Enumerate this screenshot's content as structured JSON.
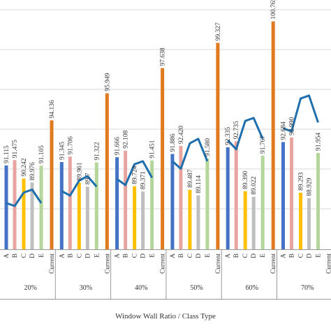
{
  "chart_data": {
    "type": "bar",
    "xlabel": "Window Wall Ratio / Class Type",
    "groups": [
      {
        "label": "20%",
        "categories": [
          "A",
          "B",
          "C",
          "D",
          "E",
          "Current"
        ],
        "values": [
          91.115,
          91.475,
          90.242,
          89.976,
          91.105,
          94.136
        ]
      },
      {
        "label": "30%",
        "categories": [
          "A",
          "B",
          "C",
          "D",
          "E",
          "Current"
        ],
        "values": [
          91.345,
          91.706,
          89.961,
          89.7,
          91.322,
          95.949
        ]
      },
      {
        "label": "40%",
        "categories": [
          "A",
          "B",
          "C",
          "D",
          "E",
          "Current"
        ],
        "values": [
          91.666,
          92.108,
          89.724,
          89.371,
          91.451,
          97.638
        ]
      },
      {
        "label": "50%",
        "categories": [
          "A",
          "B",
          "C",
          "D",
          "E",
          "Current"
        ],
        "values": [
          91.886,
          92.42,
          89.487,
          89.114,
          91.58,
          99.327
        ]
      },
      {
        "label": "60%",
        "categories": [
          "A",
          "B",
          "C",
          "D",
          "E",
          "Current"
        ],
        "values": [
          92.335,
          92.735,
          89.39,
          89.022,
          91.767,
          100.765
        ]
      },
      {
        "label": "70%",
        "categories": [
          "A",
          "B",
          "C",
          "D",
          "E",
          "Current"
        ],
        "values": [
          92.684,
          92.99,
          89.293,
          88.929,
          91.954,
          null
        ]
      }
    ],
    "value_labels": [
      [
        "91.115",
        "91.475",
        "90.242",
        "89.976",
        "91.105",
        "94.136"
      ],
      [
        "91.345",
        "91.706",
        "89.961",
        "89.7",
        "91.322",
        "95.949"
      ],
      [
        "91.666",
        "92.108",
        "89.724",
        "89.371",
        "91.451",
        "97.638"
      ],
      [
        "91.886",
        "92.420",
        "89.487",
        "89.114",
        "91.580",
        "99.327"
      ],
      [
        "92.335",
        "92.735",
        "89.390",
        "89.022",
        "91.767",
        "100.765"
      ],
      [
        "92.684",
        "92.990",
        "89.293",
        "88.929",
        "91.954",
        ""
      ]
    ],
    "line_series": {
      "color": "#1f6fae",
      "values": [
        [
          88.6,
          88.4,
          89.3,
          89.5,
          88.6
        ],
        [
          89.4,
          89.1,
          90.1,
          90.4,
          89.7
        ],
        [
          90.2,
          89.8,
          91.2,
          91.4,
          90.3
        ],
        [
          91.4,
          90.9,
          92.6,
          92.9,
          91.4
        ],
        [
          92.8,
          92.2,
          94.1,
          94.3,
          92.9
        ],
        [
          93.6,
          93.4,
          95.6,
          95.8,
          94.0
        ]
      ]
    },
    "colors": {
      "A": "#4472c4",
      "B": "#e8a5a0",
      "C": "#ffc000",
      "D": "#bfbfbf",
      "E": "#b5d69a",
      "Current": "#e07a1f",
      "gridline": "#d9d9d9",
      "axis": "#999999"
    },
    "ylim": [
      85.5,
      102.2
    ],
    "grid": true
  }
}
